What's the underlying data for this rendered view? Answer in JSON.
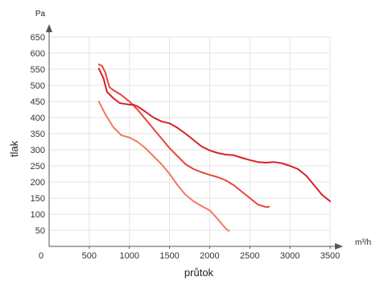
{
  "chart_data": {
    "type": "line",
    "xlabel": "průtok",
    "ylabel": "tlak",
    "x_unit": "m³/h",
    "y_unit": "Pa",
    "x_origin_label": "0",
    "xlim": [
      0,
      3500
    ],
    "ylim": [
      0,
      650
    ],
    "x_ticks": [
      500,
      1000,
      1500,
      2000,
      2500,
      3000,
      3500
    ],
    "y_ticks": [
      50,
      100,
      150,
      200,
      250,
      300,
      350,
      400,
      450,
      500,
      550,
      600,
      650
    ],
    "grid": true,
    "series": [
      {
        "color": "#f07a5e",
        "points": [
          [
            620,
            450
          ],
          [
            700,
            410
          ],
          [
            800,
            370
          ],
          [
            900,
            345
          ],
          [
            1000,
            338
          ],
          [
            1100,
            325
          ],
          [
            1200,
            305
          ],
          [
            1300,
            280
          ],
          [
            1400,
            255
          ],
          [
            1500,
            225
          ],
          [
            1600,
            190
          ],
          [
            1700,
            160
          ],
          [
            1800,
            140
          ],
          [
            1900,
            125
          ],
          [
            2000,
            112
          ],
          [
            2100,
            85
          ],
          [
            2200,
            55
          ],
          [
            2240,
            48
          ]
        ]
      },
      {
        "color": "#e8453c",
        "points": [
          [
            620,
            565
          ],
          [
            660,
            560
          ],
          [
            700,
            540
          ],
          [
            750,
            495
          ],
          [
            800,
            485
          ],
          [
            900,
            470
          ],
          [
            1000,
            450
          ],
          [
            1100,
            425
          ],
          [
            1200,
            395
          ],
          [
            1300,
            365
          ],
          [
            1400,
            335
          ],
          [
            1500,
            305
          ],
          [
            1600,
            280
          ],
          [
            1700,
            255
          ],
          [
            1800,
            240
          ],
          [
            1900,
            230
          ],
          [
            2000,
            222
          ],
          [
            2100,
            215
          ],
          [
            2200,
            205
          ],
          [
            2300,
            190
          ],
          [
            2400,
            170
          ],
          [
            2500,
            150
          ],
          [
            2600,
            130
          ],
          [
            2700,
            122
          ],
          [
            2740,
            123
          ]
        ]
      },
      {
        "color": "#d91f26",
        "points": [
          [
            620,
            552
          ],
          [
            680,
            520
          ],
          [
            720,
            480
          ],
          [
            800,
            460
          ],
          [
            880,
            445
          ],
          [
            950,
            442
          ],
          [
            1000,
            440
          ],
          [
            1050,
            440
          ],
          [
            1100,
            435
          ],
          [
            1200,
            418
          ],
          [
            1300,
            400
          ],
          [
            1400,
            388
          ],
          [
            1500,
            382
          ],
          [
            1600,
            368
          ],
          [
            1700,
            350
          ],
          [
            1800,
            330
          ],
          [
            1900,
            310
          ],
          [
            2000,
            298
          ],
          [
            2100,
            290
          ],
          [
            2200,
            285
          ],
          [
            2300,
            283
          ],
          [
            2400,
            275
          ],
          [
            2500,
            268
          ],
          [
            2600,
            262
          ],
          [
            2700,
            260
          ],
          [
            2800,
            262
          ],
          [
            2900,
            258
          ],
          [
            3000,
            250
          ],
          [
            3100,
            240
          ],
          [
            3200,
            220
          ],
          [
            3300,
            190
          ],
          [
            3400,
            160
          ],
          [
            3500,
            140
          ]
        ]
      }
    ]
  }
}
